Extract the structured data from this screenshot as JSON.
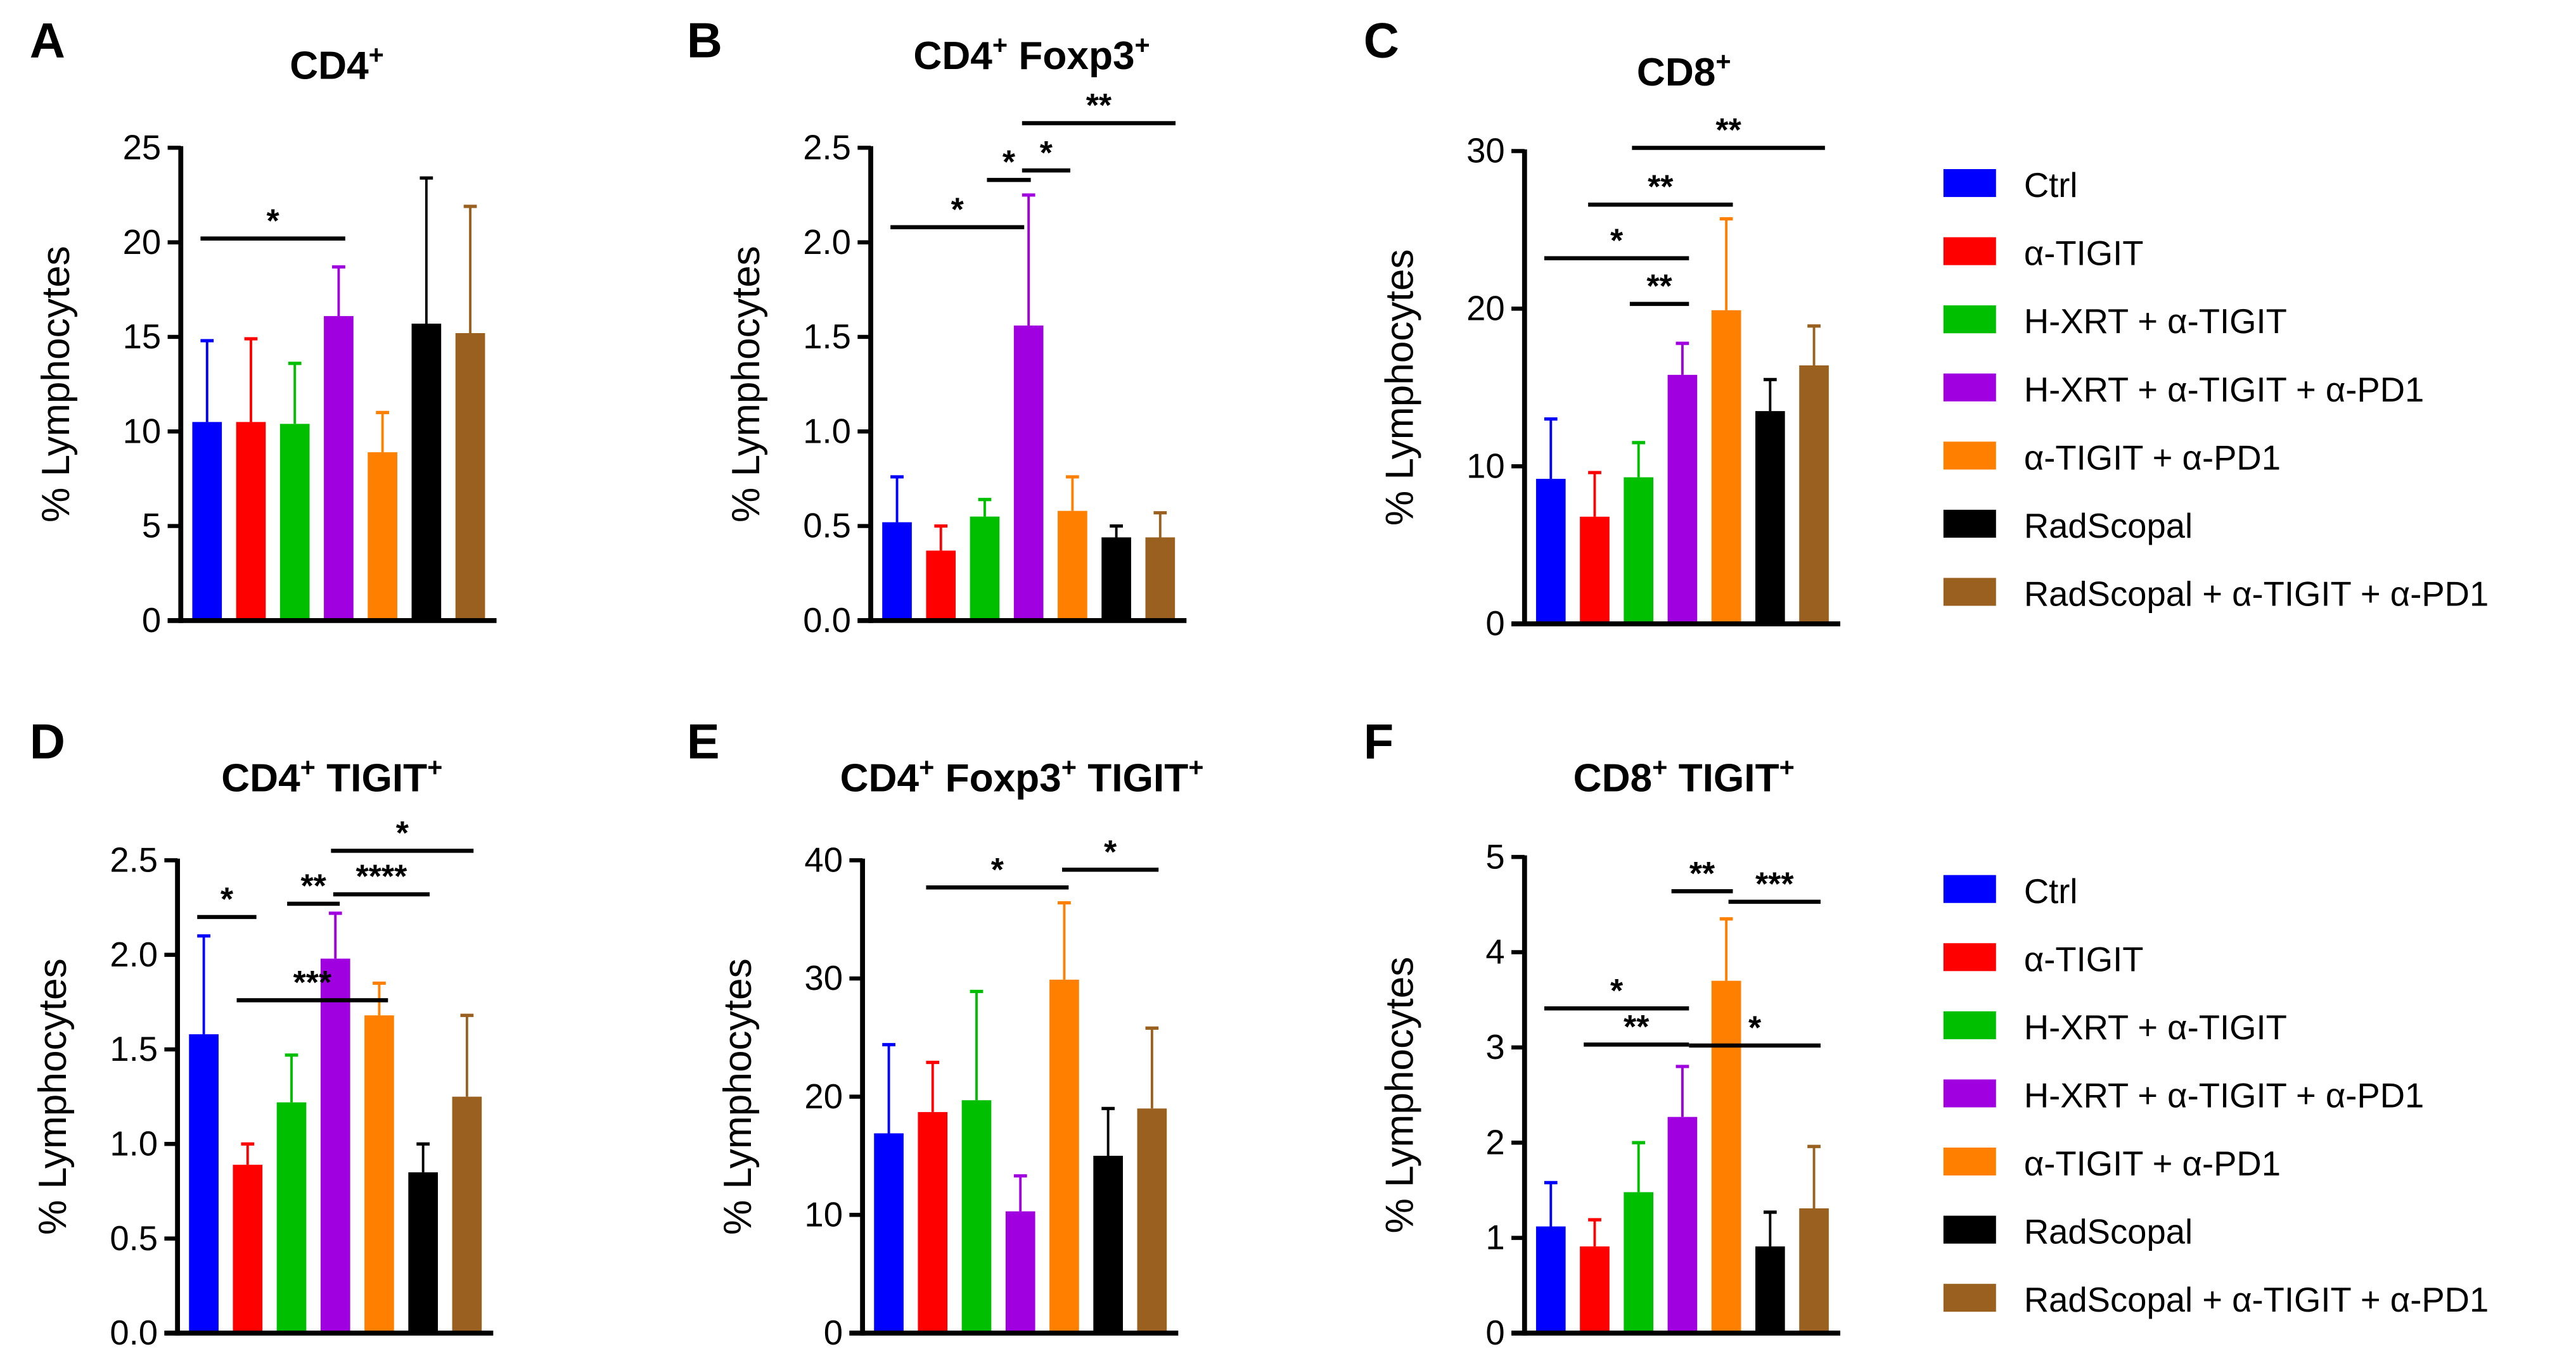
{
  "colors": [
    "#0000ff",
    "#ff0000",
    "#00bf00",
    "#a000e0",
    "#ff8000",
    "#000000",
    "#996020"
  ],
  "legends": [
    {
      "labels": [
        "Ctrl",
        "α-TIGIT",
        "H-XRT + α-TIGIT",
        "H-XRT + α-TIGIT + α-PD1",
        "α-TIGIT + α-PD1",
        "RadScopal",
        "RadScopal + α-TIGIT + α-PD1"
      ]
    },
    {
      "labels": [
        "Ctrl",
        "α-TIGIT",
        "H-XRT + α-TIGIT",
        "H-XRT + α-TIGIT + α-PD1",
        "α-TIGIT + α-PD1",
        "RadScopal",
        "RadScopal + α-TIGIT + α-PD1"
      ]
    }
  ],
  "chart_data": [
    {
      "type": "bar",
      "panel": "A",
      "title": [
        {
          "t": "CD4"
        },
        {
          "t": "+",
          "sup": true
        }
      ],
      "ylabel": "% Lymphocytes",
      "ylim": [
        0,
        25
      ],
      "yticks": [
        "0",
        "5",
        "10",
        "15",
        "20",
        "25"
      ],
      "series": [
        "Ctrl",
        "α-TIGIT",
        "H-XRT + α-TIGIT",
        "H-XRT + α-TIGIT + α-PD1",
        "α-TIGIT + α-PD1",
        "RadScopal",
        "RadScopal + α-TIGIT + α-PD1"
      ],
      "values": [
        10.5,
        10.5,
        10.4,
        16.1,
        8.9,
        15.7,
        15.2
      ],
      "error_upper": [
        14.8,
        14.9,
        13.6,
        18.7,
        11.0,
        23.4,
        21.9
      ],
      "significance": [
        {
          "from": 0,
          "to": 3,
          "y": 20.2,
          "label": "*"
        }
      ]
    },
    {
      "type": "bar",
      "panel": "B",
      "title": [
        {
          "t": "CD4"
        },
        {
          "t": "+",
          "sup": true
        },
        {
          "t": " Foxp3"
        },
        {
          "t": "+",
          "sup": true
        }
      ],
      "ylabel": "% Lymphocytes",
      "ylim": [
        0,
        2.5
      ],
      "yticks": [
        "0.0",
        "0.5",
        "1.0",
        "1.5",
        "2.0",
        "2.5"
      ],
      "series": [
        "Ctrl",
        "α-TIGIT",
        "H-XRT + α-TIGIT",
        "H-XRT + α-TIGIT + α-PD1",
        "α-TIGIT + α-PD1",
        "RadScopal",
        "RadScopal + α-TIGIT + α-PD1"
      ],
      "values": [
        0.52,
        0.37,
        0.55,
        1.56,
        0.58,
        0.44,
        0.44
      ],
      "error_upper": [
        0.76,
        0.5,
        0.64,
        2.25,
        0.76,
        0.5,
        0.57
      ],
      "significance": [
        {
          "from": 0,
          "to": 2.75,
          "y": 2.08,
          "label": "*"
        },
        {
          "from": 2.2,
          "to": 2.9,
          "y": 2.33,
          "label": "*"
        },
        {
          "from": 3.0,
          "to": 3.8,
          "y": 2.38,
          "label": "*"
        },
        {
          "from": 3.0,
          "to": 6.2,
          "y": 2.63,
          "label": "**"
        }
      ]
    },
    {
      "type": "bar",
      "panel": "C",
      "title": [
        {
          "t": "CD8"
        },
        {
          "t": "+",
          "sup": true
        }
      ],
      "ylabel": "% Lymphocytes",
      "ylim": [
        0,
        30
      ],
      "yticks": [
        "0",
        "10",
        "20",
        "30"
      ],
      "series": [
        "Ctrl",
        "α-TIGIT",
        "H-XRT + α-TIGIT",
        "H-XRT + α-TIGIT + α-PD1",
        "α-TIGIT + α-PD1",
        "RadScopal",
        "RadScopal + α-TIGIT + α-PD1"
      ],
      "values": [
        9.2,
        6.8,
        9.3,
        15.8,
        19.9,
        13.5,
        16.4
      ],
      "error_upper": [
        13.0,
        9.6,
        11.5,
        17.8,
        25.7,
        15.5,
        18.9
      ],
      "significance": [
        {
          "from": 0,
          "to": 3,
          "y": 23.2,
          "label": "*"
        },
        {
          "from": 1.95,
          "to": 3,
          "y": 20.3,
          "label": "**"
        },
        {
          "from": 1,
          "to": 4,
          "y": 26.6,
          "label": "**"
        },
        {
          "from": 2,
          "to": 6.1,
          "y": 30.2,
          "label": "**"
        }
      ]
    },
    {
      "type": "bar",
      "panel": "D",
      "title": [
        {
          "t": "CD4"
        },
        {
          "t": "+",
          "sup": true
        },
        {
          "t": " TIGIT"
        },
        {
          "t": "+",
          "sup": true
        }
      ],
      "ylabel": "% Lymphocytes",
      "ylim": [
        0,
        2.5
      ],
      "yticks": [
        "0.0",
        "0.5",
        "1.0",
        "1.5",
        "2.0",
        "2.5"
      ],
      "series": [
        "Ctrl",
        "α-TIGIT",
        "H-XRT + α-TIGIT",
        "H-XRT + α-TIGIT + α-PD1",
        "α-TIGIT + α-PD1",
        "RadScopal",
        "RadScopal + α-TIGIT + α-PD1"
      ],
      "values": [
        1.58,
        0.89,
        1.22,
        1.98,
        1.68,
        0.85,
        1.25
      ],
      "error_upper": [
        2.1,
        1.0,
        1.47,
        2.22,
        1.85,
        1.0,
        1.68
      ],
      "significance": [
        {
          "from": 0,
          "to": 1.05,
          "y": 2.2,
          "label": "*"
        },
        {
          "from": 2.05,
          "to": 2.95,
          "y": 2.27,
          "label": "**"
        },
        {
          "from": 0.9,
          "to": 4.05,
          "y": 1.76,
          "label": "***"
        },
        {
          "from": 3.1,
          "to": 5.0,
          "y": 2.32,
          "label": "****"
        },
        {
          "from": 3.05,
          "to": 6.0,
          "y": 2.55,
          "label": "*"
        }
      ]
    },
    {
      "type": "bar",
      "panel": "E",
      "title": [
        {
          "t": "CD4"
        },
        {
          "t": "+",
          "sup": true
        },
        {
          "t": " Foxp3"
        },
        {
          "t": "+",
          "sup": true
        },
        {
          "t": " TIGIT"
        },
        {
          "t": "+",
          "sup": true
        }
      ],
      "ylabel": "% Lymphocytes",
      "ylim": [
        0,
        40
      ],
      "yticks": [
        "0",
        "10",
        "20",
        "30",
        "40"
      ],
      "series": [
        "Ctrl",
        "α-TIGIT",
        "H-XRT + α-TIGIT",
        "H-XRT + α-TIGIT + α-PD1",
        "α-TIGIT + α-PD1",
        "RadScopal",
        "RadScopal + α-TIGIT + α-PD1"
      ],
      "values": [
        16.9,
        18.7,
        19.7,
        10.3,
        29.9,
        15.0,
        19.0
      ],
      "error_upper": [
        24.4,
        22.9,
        28.9,
        13.3,
        36.4,
        19.0,
        25.8
      ],
      "significance": [
        {
          "from": 1,
          "to": 3.95,
          "y": 37.7,
          "label": "*"
        },
        {
          "from": 4.1,
          "to": 6.0,
          "y": 39.2,
          "label": "*"
        }
      ]
    },
    {
      "type": "bar",
      "panel": "F",
      "title": [
        {
          "t": "CD8"
        },
        {
          "t": "+",
          "sup": true
        },
        {
          "t": " TIGIT"
        },
        {
          "t": "+",
          "sup": true
        }
      ],
      "ylabel": "% Lymphocytes",
      "ylim": [
        0,
        5
      ],
      "yticks": [
        "0",
        "1",
        "2",
        "3",
        "4",
        "5"
      ],
      "series": [
        "Ctrl",
        "α-TIGIT",
        "H-XRT + α-TIGIT",
        "H-XRT + α-TIGIT + α-PD1",
        "α-TIGIT + α-PD1",
        "RadScopal",
        "RadScopal + α-TIGIT + α-PD1"
      ],
      "values": [
        1.12,
        0.91,
        1.48,
        2.27,
        3.7,
        0.91,
        1.31
      ],
      "error_upper": [
        1.58,
        1.19,
        2.0,
        2.8,
        4.35,
        1.27,
        1.96
      ],
      "significance": [
        {
          "from": 0,
          "to": 3,
          "y": 3.41,
          "label": "*"
        },
        {
          "from": 0.9,
          "to": 3,
          "y": 3.03,
          "label": "**"
        },
        {
          "from": 2.9,
          "to": 4,
          "y": 4.64,
          "label": "**"
        },
        {
          "from": 4.2,
          "to": 6,
          "y": 4.53,
          "label": "***"
        },
        {
          "from": 3.3,
          "to": 6,
          "y": 3.02,
          "label": "*"
        }
      ]
    }
  ]
}
